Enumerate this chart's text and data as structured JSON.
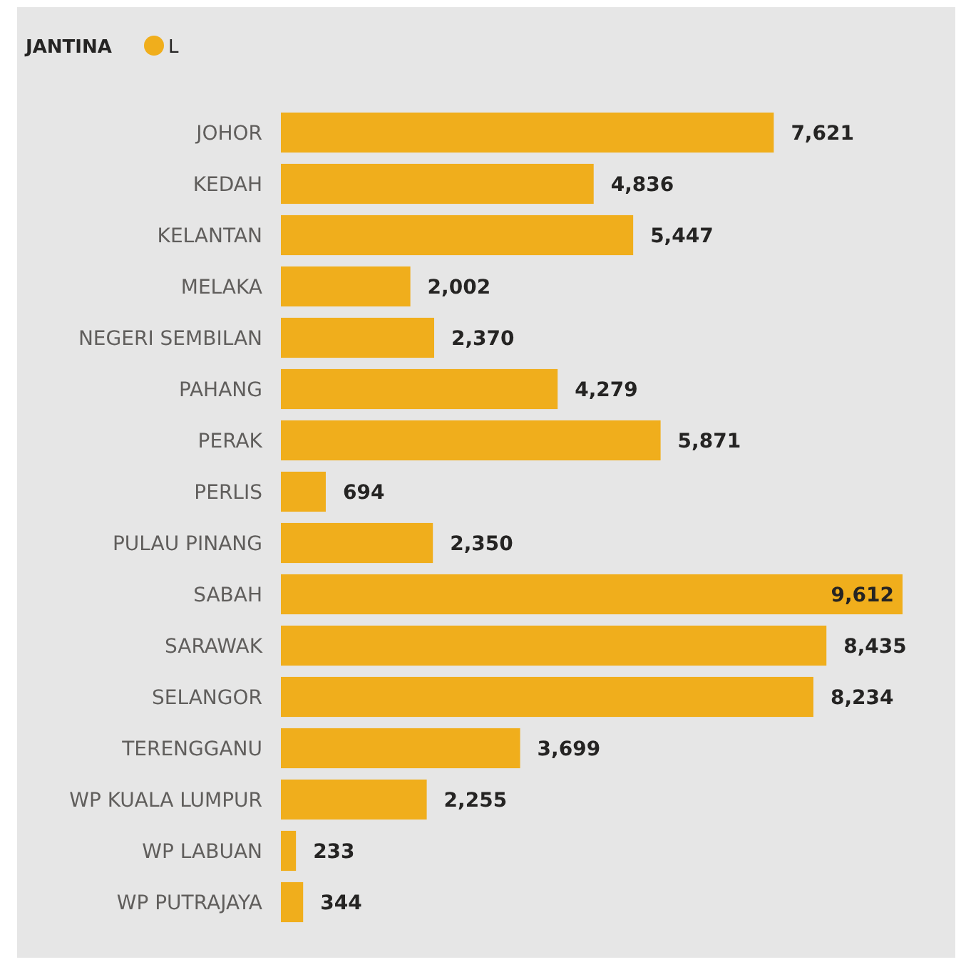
{
  "chart_data": {
    "type": "bar",
    "orientation": "horizontal",
    "legend_title": "JANTINA",
    "legend": "top left",
    "categories": [
      "JOHOR",
      "KEDAH",
      "KELANTAN",
      "MELAKA",
      "NEGERI SEMBILAN",
      "PAHANG",
      "PERAK",
      "PERLIS",
      "PULAU PINANG",
      "SABAH",
      "SARAWAK",
      "SELANGOR",
      "TERENGGANU",
      "WP KUALA LUMPUR",
      "WP LABUAN",
      "WP PUTRAJAYA"
    ],
    "series": [
      {
        "name": "L",
        "color": "#f0ae1c",
        "values": [
          7621,
          4836,
          5447,
          2002,
          2370,
          4279,
          5871,
          694,
          2350,
          9612,
          8435,
          8234,
          3699,
          2255,
          233,
          344
        ],
        "value_labels": [
          "7,621",
          "4,836",
          "5,447",
          "2,002",
          "2,370",
          "4,279",
          "5,871",
          "694",
          "2,350",
          "9,612",
          "8,435",
          "8,234",
          "3,699",
          "2,255",
          "233",
          "344"
        ]
      }
    ]
  }
}
